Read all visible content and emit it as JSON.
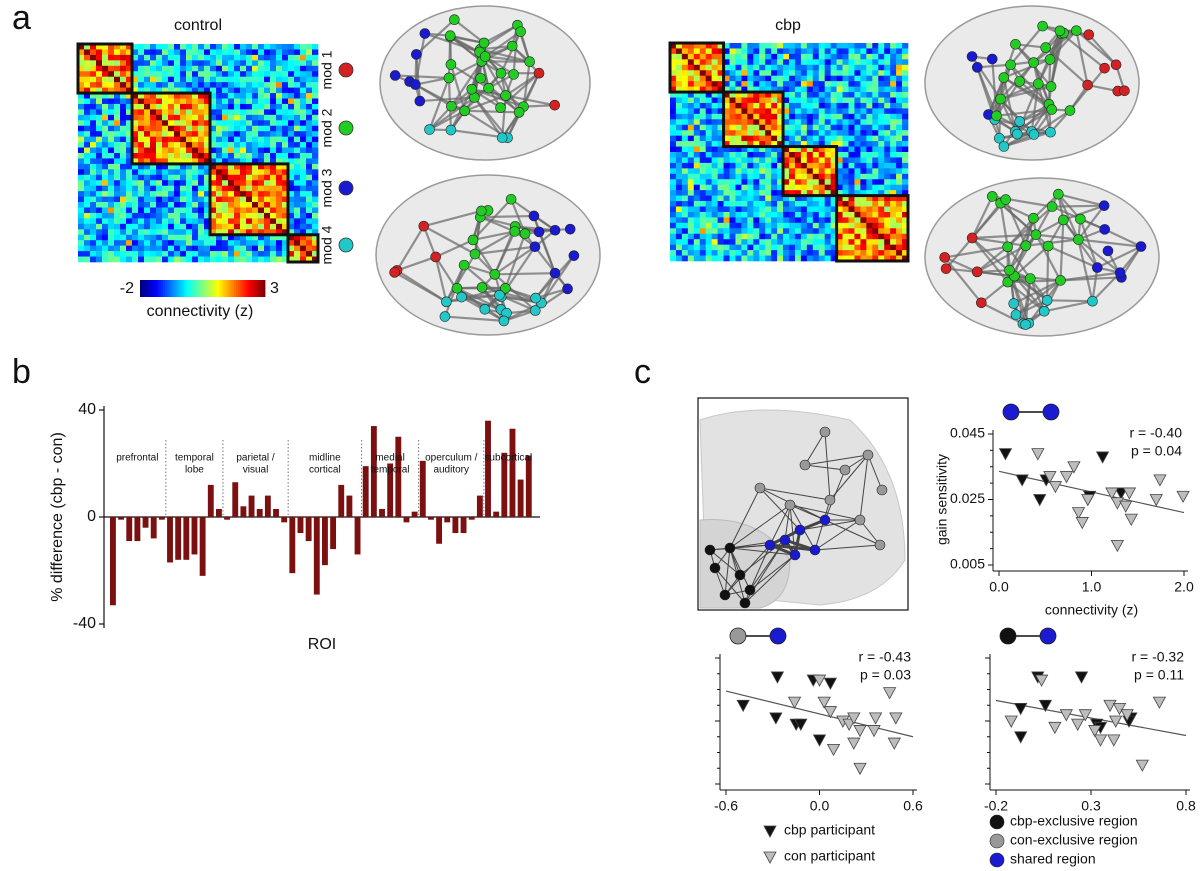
{
  "panel_labels": [
    "a",
    "b",
    "c"
  ],
  "matrices": [
    {
      "title": "control"
    },
    {
      "title": "cbp"
    }
  ],
  "modules": [
    {
      "name": "mod 1",
      "color": "#d42222"
    },
    {
      "name": "mod 2",
      "color": "#22cc22"
    },
    {
      "name": "mod 3",
      "color": "#1a1ad0"
    },
    {
      "name": "mod 4",
      "color": "#22c8c8"
    }
  ],
  "colorbar": {
    "label": "connectivity (z)",
    "ticks": [
      -2,
      3
    ]
  },
  "region_legend": [
    {
      "name": "cbp-exclusive region",
      "color": "#111111"
    },
    {
      "name": "con-exclusive region",
      "color": "#999999"
    },
    {
      "name": "shared region",
      "color": "#1a1ad0"
    }
  ],
  "chart_data": [
    {
      "type": "bar",
      "ylabel": "% difference (cbp - con)",
      "xlabel": "ROI",
      "color": "#7a1010",
      "ylim": [
        -40,
        40
      ],
      "yticks": [
        -40,
        0,
        40
      ],
      "groups": [
        {
          "label": [
            "prefrontal"
          ]
        },
        {
          "label": [
            "temporal",
            "lobe"
          ]
        },
        {
          "label": [
            "parietal /",
            "visual"
          ]
        },
        {
          "label": [
            "midline",
            "cortical"
          ]
        },
        {
          "label": [
            "medial",
            "temporal"
          ]
        },
        {
          "label": [
            "operculum /",
            "auditory"
          ]
        },
        {
          "label": [
            "subcortical"
          ]
        }
      ],
      "values": [
        -33,
        -1,
        -9,
        -9,
        -4,
        -8,
        -1,
        -17,
        -16,
        -16,
        -14,
        -22,
        12,
        3,
        -1,
        13,
        4,
        8,
        3,
        8,
        3,
        -2,
        -21,
        -6,
        -9,
        -29,
        -18,
        -12,
        12,
        8,
        -14,
        19,
        34,
        3,
        20,
        30,
        -2,
        2,
        21,
        -1,
        -10,
        -2,
        -6,
        -6,
        -1,
        8,
        36,
        2,
        24,
        33,
        14,
        23
      ]
    },
    {
      "type": "scatter",
      "ylabel": "gain sensitivity",
      "xlabel": "connectivity (z)",
      "annotations": [
        "r = -0.40",
        "p = 0.04"
      ],
      "link_colors": [
        "#1a1ad0",
        "#1a1ad0"
      ],
      "xlim": [
        0,
        2
      ],
      "xticks": [
        {
          "value": 0,
          "label": "0.0"
        },
        {
          "value": 1,
          "label": "1.0"
        },
        {
          "value": 2,
          "label": "2.0"
        }
      ],
      "ylim": [
        0.005,
        0.045
      ],
      "yticks": [
        0.005,
        0.025,
        0.045
      ],
      "series": [
        {
          "name": "cbp participant",
          "color": "#111111",
          "x": [
            0.07,
            0.25,
            0.44,
            0.51,
            1.12,
            0.98,
            1.32
          ],
          "values": [
            0.039,
            0.031,
            0.025,
            0.031,
            0.038,
            0.026,
            0.027
          ]
        },
        {
          "name": "con participant",
          "color": "#bdbdbd",
          "x": [
            0.42,
            0.61,
            0.73,
            0.81,
            0.86,
            0.9,
            0.96,
            1.22,
            1.28,
            1.37,
            1.43,
            1.28,
            1.41,
            1.7,
            1.74,
            1.99,
            0.55
          ],
          "values": [
            0.039,
            0.029,
            0.032,
            0.035,
            0.021,
            0.018,
            0.025,
            0.027,
            0.024,
            0.023,
            0.019,
            0.011,
            0.027,
            0.025,
            0.031,
            0.026,
            0.032
          ]
        }
      ],
      "fit": {
        "x": [
          0,
          2
        ],
        "y": [
          0.0336,
          0.021
        ]
      }
    },
    {
      "type": "scatter",
      "annotations": [
        "r = -0.43",
        "p = 0.03"
      ],
      "link_colors": [
        "#999999",
        "#1a1ad0"
      ],
      "xlim": [
        -0.6,
        0.6
      ],
      "xticks": [
        -0.6,
        {
          "value": 0,
          "label": "0.0"
        },
        0.6
      ],
      "ylim": [
        0.005,
        0.045
      ],
      "yticks": [
        0.005,
        0.025,
        0.045
      ],
      "series": [
        {
          "color": "#111111",
          "x": [
            -0.49,
            -0.27,
            -0.28,
            -0.15,
            -0.12,
            -0.04,
            0.07,
            0.0
          ],
          "values": [
            0.03,
            0.039,
            0.026,
            0.024,
            0.024,
            0.038,
            0.037,
            0.019
          ]
        },
        {
          "color": "#bdbdbd",
          "x": [
            0.0,
            -0.16,
            0.03,
            0.07,
            0.15,
            0.19,
            0.22,
            0.26,
            0.09,
            0.36,
            0.45,
            0.49,
            0.48,
            0.26,
            0.22,
            0.35
          ],
          "values": [
            0.038,
            0.031,
            0.031,
            0.028,
            0.025,
            0.024,
            0.026,
            0.022,
            0.016,
            0.026,
            0.034,
            0.026,
            0.018,
            0.01,
            0.018,
            0.022
          ]
        }
      ],
      "fit": {
        "x": [
          -0.6,
          0.6
        ],
        "y": [
          0.0345,
          0.02
        ]
      }
    },
    {
      "type": "scatter",
      "annotations": [
        "r = -0.32",
        "p = 0.11"
      ],
      "link_colors": [
        "#111111",
        "#1a1ad0"
      ],
      "xlim": [
        -0.2,
        0.8
      ],
      "xticks": [
        -0.2,
        0.3,
        0.8
      ],
      "ylim": [
        0.005,
        0.045
      ],
      "yticks": [
        0.005,
        0.025,
        0.045
      ],
      "series": [
        {
          "color": "#111111",
          "x": [
            -0.07,
            -0.07,
            0.02,
            0.06,
            0.25,
            0.33,
            0.35,
            0.51,
            0.5
          ],
          "values": [
            0.029,
            0.02,
            0.039,
            0.03,
            0.039,
            0.024,
            0.023,
            0.026,
            0.025
          ]
        },
        {
          "color": "#bdbdbd",
          "x": [
            -0.12,
            0.04,
            0.11,
            0.23,
            0.27,
            0.32,
            0.35,
            0.42,
            0.4,
            0.45,
            0.49,
            0.43,
            0.57,
            0.66,
            0.17
          ],
          "values": [
            0.025,
            0.038,
            0.023,
            0.024,
            0.027,
            0.022,
            0.019,
            0.019,
            0.03,
            0.029,
            0.027,
            0.025,
            0.011,
            0.031,
            0.027
          ]
        }
      ],
      "fit": {
        "x": [
          -0.2,
          0.8
        ],
        "y": [
          0.0315,
          0.0204
        ]
      }
    }
  ]
}
